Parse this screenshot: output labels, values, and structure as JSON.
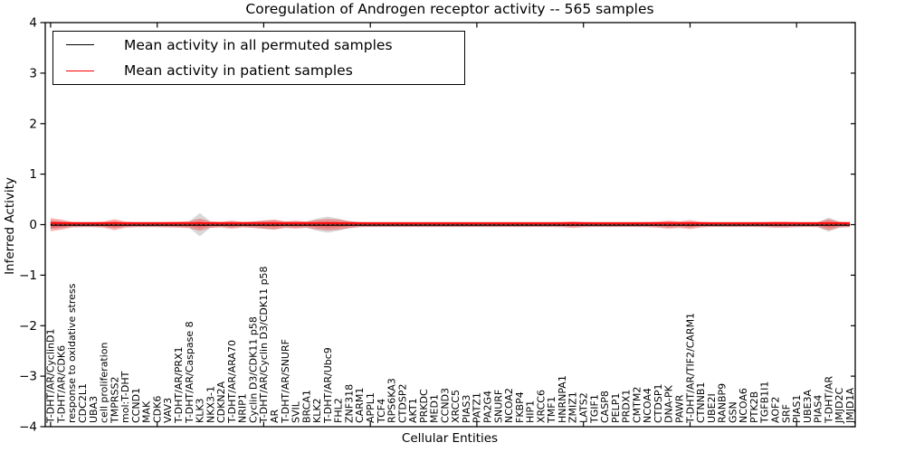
{
  "title": "Coregulation of Androgen receptor activity -- 565 samples",
  "legend": {
    "entries": [
      {
        "label": "Mean activity in all permuted samples",
        "color": "#000000"
      },
      {
        "label": "Mean activity in patient samples",
        "color": "#ff0000"
      }
    ]
  },
  "colors": {
    "patient_line": "#ff0000",
    "permuted_line": "#000000",
    "patient_band_fill": "rgba(255,0,0,0.30)",
    "permuted_band_fill": "rgba(110,110,110,0.27)",
    "axis": "#000000"
  },
  "chart_data": {
    "type": "line",
    "title": "Coregulation of Androgen receptor activity -- 565 samples",
    "xlabel": "Cellular Entities",
    "ylabel": "Inferred Activity",
    "ylim": [
      -4,
      4
    ],
    "yticks": [
      -4,
      -3,
      -2,
      -1,
      0,
      1,
      2,
      3,
      4
    ],
    "xticks_major": [
      0,
      10,
      20,
      30,
      40,
      50,
      60,
      70
    ],
    "grid": false,
    "legend_position": "upper left",
    "categories": [
      "T-DHT/AR/CyclinD1",
      "T-DHT/AR/CDK6",
      "response to oxidative stress",
      "CDC2L1",
      "UBA3",
      "cell proliferation",
      "TMPRSS2",
      "mol:T-DHT",
      "CCND1",
      "MAK",
      "CDK6",
      "VAV3",
      "T-DHT/AR/PRX1",
      "T-DHT/AR/Caspase 8",
      "KLK3",
      "NKX3-1",
      "CDKN2A",
      "T-DHT/AR/ARA70",
      "NRIP1",
      "Cyclin D3/CDK11 p58",
      "T-DHT/AR/Cyclin D3/CDK11 p58",
      "AR",
      "T-DHT/AR/SNURF",
      "SVIL",
      "BRCA1",
      "KLK2",
      "T-DHT/AR/Ubc9",
      "FHL2",
      "ZNF318",
      "CARM1",
      "APPL1",
      "TCF4",
      "RPS6KA3",
      "CTDSP2",
      "AKT1",
      "PRKDC",
      "MED1",
      "CCND3",
      "XRCC5",
      "PIAS3",
      "PATZ1",
      "PA2G4",
      "SNURF",
      "NCOA2",
      "FKBP4",
      "HIP1",
      "XRCC6",
      "TMF1",
      "HNRNPA1",
      "ZMIZ1",
      "LATS2",
      "TGIF1",
      "CASP8",
      "PELP1",
      "PRDX1",
      "CMTM2",
      "NCOA4",
      "CTDSP1",
      "DNA-PK",
      "PAWR",
      "T-DHT/AR/TIF2/CARM1",
      "CTNNB1",
      "UBE2I",
      "RANBP9",
      "GSN",
      "NCOA6",
      "PTK2B",
      "TGFB1I1",
      "AOF2",
      "SRF",
      "PIAS1",
      "UBE3A",
      "PIAS4",
      "T-DHT/AR",
      "JMJD2C",
      "JMJD1A"
    ],
    "series": [
      {
        "name": "Mean activity in all permuted samples",
        "color": "#000000",
        "level": -0.01,
        "linestyle": "solid"
      },
      {
        "name": "Mean activity in patient samples",
        "color": "#ff0000",
        "level": 0.03,
        "linestyle": "solid"
      },
      {
        "name": "zero reference",
        "color": "#000000",
        "level": 0.0,
        "linestyle": "dotted"
      }
    ],
    "patient_band_half": [
      0.13,
      0.1,
      0.055,
      0.05,
      0.05,
      0.06,
      0.11,
      0.06,
      0.05,
      0.05,
      0.05,
      0.055,
      0.06,
      0.07,
      0.12,
      0.065,
      0.055,
      0.08,
      0.055,
      0.065,
      0.08,
      0.1,
      0.065,
      0.08,
      0.06,
      0.095,
      0.115,
      0.1,
      0.07,
      0.05,
      0.045,
      0.045,
      0.045,
      0.045,
      0.045,
      0.045,
      0.045,
      0.045,
      0.045,
      0.045,
      0.045,
      0.045,
      0.045,
      0.045,
      0.045,
      0.045,
      0.045,
      0.045,
      0.05,
      0.065,
      0.05,
      0.045,
      0.045,
      0.045,
      0.045,
      0.045,
      0.05,
      0.06,
      0.08,
      0.065,
      0.09,
      0.055,
      0.045,
      0.045,
      0.045,
      0.045,
      0.045,
      0.05,
      0.06,
      0.06,
      0.05,
      0.045,
      0.05,
      0.11,
      0.055,
      0.05
    ],
    "permuted_band_half": [
      0.09,
      0.07,
      0.05,
      0.05,
      0.05,
      0.05,
      0.07,
      0.05,
      0.05,
      0.05,
      0.05,
      0.05,
      0.05,
      0.06,
      0.23,
      0.06,
      0.05,
      0.06,
      0.05,
      0.06,
      0.08,
      0.09,
      0.06,
      0.06,
      0.06,
      0.12,
      0.16,
      0.12,
      0.07,
      0.05,
      0.05,
      0.05,
      0.05,
      0.05,
      0.05,
      0.05,
      0.05,
      0.05,
      0.05,
      0.05,
      0.05,
      0.05,
      0.05,
      0.05,
      0.05,
      0.05,
      0.05,
      0.05,
      0.05,
      0.05,
      0.05,
      0.05,
      0.05,
      0.05,
      0.05,
      0.05,
      0.05,
      0.05,
      0.06,
      0.05,
      0.06,
      0.05,
      0.05,
      0.05,
      0.05,
      0.05,
      0.05,
      0.05,
      0.05,
      0.05,
      0.05,
      0.05,
      0.05,
      0.14,
      0.06,
      0.05
    ]
  }
}
